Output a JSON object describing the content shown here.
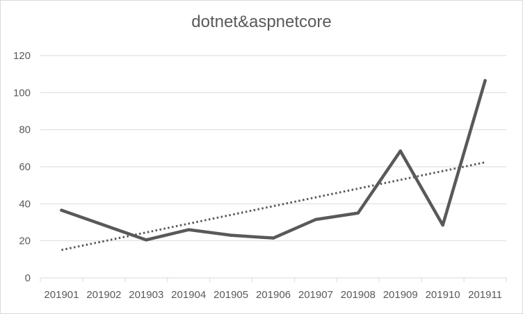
{
  "chart_data": {
    "type": "line",
    "title": "dotnet&aspnetcore",
    "categories": [
      "201901",
      "201902",
      "201903",
      "201904",
      "201905",
      "201906",
      "201907",
      "201908",
      "201909",
      "201910",
      "201911"
    ],
    "series": [
      {
        "values": [
          36.5,
          28.5,
          20.5,
          26,
          23,
          21.5,
          31.5,
          35,
          68.5,
          28.5,
          106.5
        ],
        "color": "#595959"
      }
    ],
    "trendline": {
      "type": "linear",
      "style": "dotted",
      "color": "#595959"
    },
    "ylim": [
      0,
      120
    ],
    "yticks": [
      0,
      20,
      40,
      60,
      80,
      100,
      120
    ],
    "grid": true,
    "legend": "none"
  }
}
